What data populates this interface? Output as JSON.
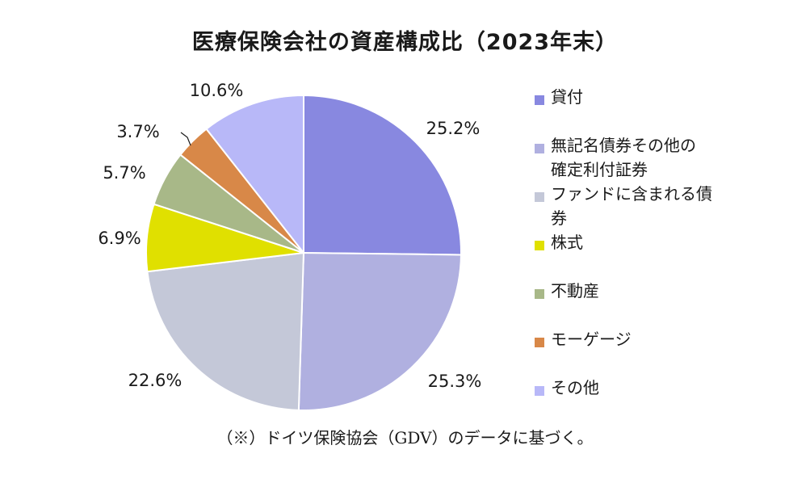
{
  "chart_data": {
    "type": "pie",
    "title": "医療保険会社の資産構成比（2023年末）",
    "start_angle_deg": 0,
    "direction": "clockwise",
    "legend_position": "right",
    "slices": [
      {
        "label": "貸付",
        "value": 25.2,
        "display": "25.2%",
        "color": "#8888e0"
      },
      {
        "label": "無記名債券その他の確定利付証券",
        "value": 25.3,
        "display": "25.3%",
        "color": "#b0b0e0"
      },
      {
        "label": "ファンドに含まれる債券",
        "value": 22.6,
        "display": "22.6%",
        "color": "#c4c8d8"
      },
      {
        "label": "株式",
        "value": 6.9,
        "display": "6.9%",
        "color": "#e0e000"
      },
      {
        "label": "不動産",
        "value": 5.7,
        "display": "5.7%",
        "color": "#a8b888"
      },
      {
        "label": "モーゲージ",
        "value": 3.7,
        "display": "3.7%",
        "color": "#d88848"
      },
      {
        "label": "その他",
        "value": 10.6,
        "display": "10.6%",
        "color": "#b8b8f8"
      }
    ]
  },
  "legend_lines": [
    "貸付",
    "無記名債券その他の\n確定利付証券",
    "ファンドに含まれる債\n券",
    "株式",
    "不動産",
    "モーゲージ",
    "その他"
  ],
  "footnote": "（※）ドイツ保険協会（GDV）のデータに基づく。"
}
